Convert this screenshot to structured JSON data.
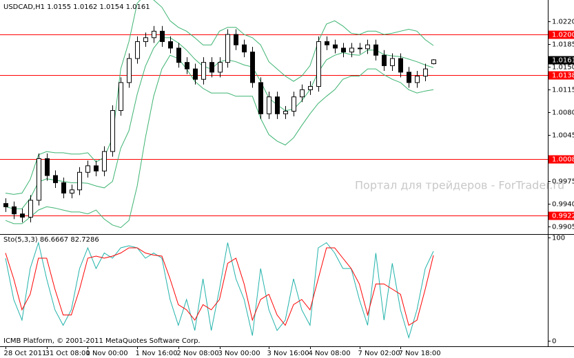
{
  "chart_data": {
    "type": "candlestick",
    "title": "USDCAD,H1  1.0155 1.0162 1.0154 1.0161",
    "watermark": "Портал для трейдеров - ForTrader.ru",
    "copyright": "ICMB Platform, © 2001-2011 MetaQuotes Software Corp.",
    "categories": [
      "28 Oct 2011",
      null,
      null,
      null,
      null,
      "31 Oct 08:00",
      null,
      null,
      null,
      null,
      "1 Nov 00:00",
      null,
      null,
      null,
      null,
      null,
      "1 Nov 16:00",
      null,
      null,
      null,
      null,
      "2 Nov 08:00",
      null,
      null,
      null,
      null,
      "3 Nov 00:00",
      null,
      null,
      null,
      null,
      null,
      "3 Nov 16:00",
      null,
      null,
      null,
      null,
      "4 Nov 08:00",
      null,
      null,
      null,
      null,
      null,
      "7 Nov 02:00",
      null,
      null,
      null,
      null,
      "7 Nov 18:00",
      null,
      null,
      null,
      null
    ],
    "open": [
      0.994,
      0.9935,
      0.9924,
      0.9919,
      0.9945,
      1.0009,
      0.9983,
      0.9972,
      0.9956,
      0.9961,
      0.9988,
      0.9998,
      0.999,
      1.002,
      1.0083,
      1.0126,
      1.0163,
      1.0189,
      1.0195,
      1.0205,
      1.0189,
      1.0179,
      1.0157,
      1.0147,
      1.0131,
      1.0157,
      1.0142,
      1.0157,
      1.02,
      1.0184,
      1.0173,
      1.0126,
      1.0078,
      1.0104,
      1.0078,
      1.0082,
      1.0104,
      1.0115,
      1.012,
      1.0189,
      1.0184,
      1.0179,
      1.0173,
      1.0179,
      1.0178,
      1.0184,
      1.0168,
      1.0152,
      1.0163,
      1.0142,
      1.0126,
      1.0136,
      1.0155
    ],
    "high": [
      0.9948,
      0.9943,
      0.9932,
      0.9953,
      1.0017,
      1.0017,
      0.9991,
      0.998,
      0.9969,
      0.9996,
      1.0006,
      1.0006,
      1.0028,
      1.0091,
      1.0134,
      1.0171,
      1.0197,
      1.0203,
      1.0213,
      1.0213,
      1.0197,
      1.0187,
      1.0165,
      1.0155,
      1.0165,
      1.0165,
      1.0165,
      1.0208,
      1.0208,
      1.0192,
      1.0181,
      1.0134,
      1.0112,
      1.0112,
      1.009,
      1.0112,
      1.0123,
      1.0128,
      1.0197,
      1.0197,
      1.0192,
      1.0187,
      1.0187,
      1.0187,
      1.0192,
      1.0192,
      1.0176,
      1.0171,
      1.0171,
      1.015,
      1.0144,
      1.0155,
      1.0162
    ],
    "low": [
      0.9927,
      0.9916,
      0.9911,
      0.9911,
      0.9937,
      0.9975,
      0.9964,
      0.9948,
      0.9948,
      0.9953,
      0.998,
      0.9982,
      0.9982,
      1.0012,
      1.0075,
      1.0118,
      1.0155,
      1.0181,
      1.0187,
      1.0181,
      1.0171,
      1.0149,
      1.0139,
      1.0123,
      1.0123,
      1.0134,
      1.0134,
      1.0149,
      1.0176,
      1.0165,
      1.0118,
      1.007,
      1.007,
      1.007,
      1.007,
      1.0074,
      1.0096,
      1.0107,
      1.0112,
      1.0176,
      1.0171,
      1.0165,
      1.0165,
      1.017,
      1.017,
      1.016,
      1.0144,
      1.0144,
      1.0134,
      1.0118,
      1.0118,
      1.0128,
      1.0154
    ],
    "close": [
      0.9935,
      0.9924,
      0.9919,
      0.9945,
      1.0009,
      0.9983,
      0.9972,
      0.9956,
      0.9961,
      0.9988,
      0.9998,
      0.999,
      1.002,
      1.0083,
      1.0126,
      1.0163,
      1.0189,
      1.0195,
      1.0205,
      1.0189,
      1.0179,
      1.0157,
      1.0147,
      1.0131,
      1.0157,
      1.0142,
      1.0157,
      1.02,
      1.0184,
      1.0173,
      1.0126,
      1.0078,
      1.0104,
      1.0078,
      1.0082,
      1.0104,
      1.0115,
      1.012,
      1.0189,
      1.0184,
      1.0179,
      1.0173,
      1.0179,
      1.0178,
      1.0184,
      1.0168,
      1.0152,
      1.0163,
      1.0142,
      1.0126,
      1.0136,
      1.0147,
      1.0161
    ],
    "bull_color": "#ffffff",
    "bear_color": "#000000",
    "wick_color": "#000000",
    "bands": {
      "color": "#3cb371",
      "upper": [
        0.9956,
        0.9954,
        0.9956,
        0.9977,
        1.0015,
        1.002,
        1.0018,
        1.0018,
        1.0016,
        1.0016,
        1.0018,
        1.0004,
        1.0011,
        1.0041,
        1.0147,
        1.0189,
        1.0248,
        1.0261,
        1.0253,
        1.0242,
        1.0221,
        1.0211,
        1.0205,
        1.0195,
        1.0184,
        1.0184,
        1.0205,
        1.0211,
        1.0211,
        1.02,
        1.0195,
        1.0184,
        1.0158,
        1.0147,
        1.0136,
        1.0128,
        1.0136,
        1.0152,
        1.0189,
        1.0216,
        1.0221,
        1.0213,
        1.0202,
        1.02,
        1.0205,
        1.0205,
        1.02,
        1.0202,
        1.0205,
        1.0208,
        1.0205,
        1.0192,
        1.0183
      ],
      "middle": [
        0.9935,
        0.9932,
        0.9932,
        0.9948,
        0.9973,
        0.9978,
        0.9976,
        0.9974,
        0.9972,
        0.9972,
        0.9971,
        0.9967,
        0.9964,
        0.9974,
        1.0025,
        1.0052,
        1.0108,
        1.0151,
        1.0179,
        1.0195,
        1.0195,
        1.0187,
        1.0176,
        1.0162,
        1.0151,
        1.0147,
        1.0158,
        1.0161,
        1.0158,
        1.0153,
        1.015,
        1.0128,
        1.0102,
        1.0092,
        1.0083,
        1.0085,
        1.0098,
        1.0115,
        1.0142,
        1.0161,
        1.0168,
        1.0172,
        1.0169,
        1.0168,
        1.0176,
        1.0176,
        1.0169,
        1.0167,
        1.0166,
        1.0162,
        1.0158,
        1.0153,
        1.0149
      ],
      "lower": [
        0.9914,
        0.9909,
        0.9909,
        0.9919,
        0.993,
        0.9935,
        0.9933,
        0.993,
        0.9927,
        0.9927,
        0.9924,
        0.993,
        0.9916,
        0.9907,
        0.9903,
        0.9914,
        0.9967,
        1.0041,
        1.0105,
        1.0147,
        1.0168,
        1.0163,
        1.0147,
        1.0128,
        1.0117,
        1.011,
        1.011,
        1.011,
        1.0105,
        1.0105,
        1.0105,
        1.0071,
        1.0046,
        1.0036,
        1.003,
        1.0041,
        1.006,
        1.0078,
        1.0094,
        1.0105,
        1.0115,
        1.0131,
        1.0136,
        1.0136,
        1.0147,
        1.0147,
        1.0138,
        1.0131,
        1.0126,
        1.0115,
        1.011,
        1.0113,
        1.0115
      ]
    },
    "ylim": [
      0.9893,
      1.0253
    ],
    "yticks": [
      {
        "value": 1.022,
        "label": "1.0220"
      },
      {
        "value": 1.0185,
        "label": "1.0185"
      },
      {
        "value": 1.015,
        "label": "1.0150"
      },
      {
        "value": 1.0115,
        "label": "1.0115"
      },
      {
        "value": 1.008,
        "label": "1.0080"
      },
      {
        "value": 1.0045,
        "label": "1.0045"
      },
      {
        "value": 0.9975,
        "label": "0.9975"
      },
      {
        "value": 0.994,
        "label": "0.9940"
      },
      {
        "value": 0.9905,
        "label": "0.9905"
      }
    ],
    "levels": {
      "color": "#ff0000",
      "values": [
        {
          "value": 1.02,
          "label": "1.0200"
        },
        {
          "value": 1.0138,
          "label": "1.0138"
        },
        {
          "value": 1.0008,
          "label": "1.0008"
        },
        {
          "value": 0.9922,
          "label": "0.9922"
        }
      ]
    },
    "bid": 1.0161,
    "bid_color": "#000000",
    "indicator": {
      "type": "line",
      "label": "Sto(5,3,3) 86.6667 82.7286",
      "main": {
        "color": "#20b2aa",
        "values": [
          80,
          40,
          20,
          70,
          95,
          60,
          30,
          15,
          30,
          70,
          90,
          70,
          85,
          80,
          90,
          92,
          90,
          80,
          85,
          80,
          40,
          15,
          40,
          10,
          60,
          10,
          50,
          95,
          60,
          40,
          5,
          70,
          30,
          10,
          20,
          60,
          30,
          15,
          90,
          95,
          85,
          70,
          70,
          40,
          15,
          85,
          20,
          75,
          30,
          3,
          30,
          70,
          86.6667
        ]
      },
      "signal": {
        "color": "#ff0000",
        "values": [
          85,
          60,
          30,
          45,
          80,
          80,
          50,
          25,
          25,
          50,
          80,
          82,
          80,
          82,
          85,
          90,
          90,
          85,
          83,
          82,
          60,
          35,
          30,
          20,
          35,
          30,
          40,
          75,
          80,
          55,
          20,
          40,
          45,
          25,
          15,
          35,
          40,
          30,
          60,
          90,
          90,
          80,
          70,
          55,
          25,
          55,
          55,
          50,
          45,
          15,
          20,
          50,
          82.7286
        ]
      },
      "ylim": [
        -5.3,
        102
      ],
      "yticks": [
        0,
        100
      ]
    }
  }
}
